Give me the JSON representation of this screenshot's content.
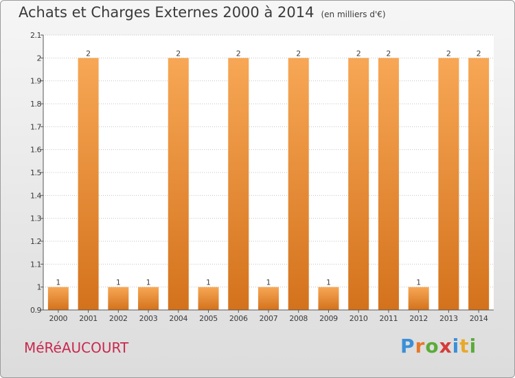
{
  "title": "Achats et Charges Externes 2000 à 2014",
  "subtitle": "(en milliers d'€)",
  "commune": "MéRéAUCOURT",
  "brand": {
    "letters": [
      "P",
      "r",
      "o",
      "x",
      "i",
      "t",
      "i"
    ],
    "colors": [
      "#3b8fd8",
      "#e8772a",
      "#5bab3a",
      "#d63a3a",
      "#3b8fd8",
      "#e8a92a",
      "#5bab3a"
    ]
  },
  "colors": {
    "bar_top": "#f7a755",
    "bar_bottom": "#d4721c",
    "grid": "#c0c0c0",
    "axis": "#555555",
    "text": "#3a3a3a"
  },
  "chart_data": {
    "type": "bar",
    "categories": [
      "2000",
      "2001",
      "2002",
      "2003",
      "2004",
      "2005",
      "2006",
      "2007",
      "2008",
      "2009",
      "2010",
      "2011",
      "2012",
      "2013",
      "2014"
    ],
    "values": [
      1,
      2,
      1,
      1,
      2,
      1,
      2,
      1,
      2,
      1,
      2,
      2,
      1,
      2,
      2
    ],
    "data_labels": [
      "1",
      "2",
      "1",
      "1",
      "2",
      "1",
      "2",
      "1",
      "2",
      "1",
      "2",
      "2",
      "1",
      "2",
      "2"
    ],
    "ylim": [
      0.9,
      2.1
    ],
    "yticks": [
      0.9,
      1,
      1.1,
      1.2,
      1.3,
      1.4,
      1.5,
      1.6,
      1.7,
      1.8,
      1.9,
      2,
      2.1
    ],
    "ytick_labels": [
      "0.9",
      "1",
      "1.1",
      "1.2",
      "1.3",
      "1.4",
      "1.5",
      "1.6",
      "1.7",
      "1.8",
      "1.9",
      "2",
      "2.1"
    ],
    "grid": true,
    "xlabel": "",
    "ylabel": ""
  }
}
